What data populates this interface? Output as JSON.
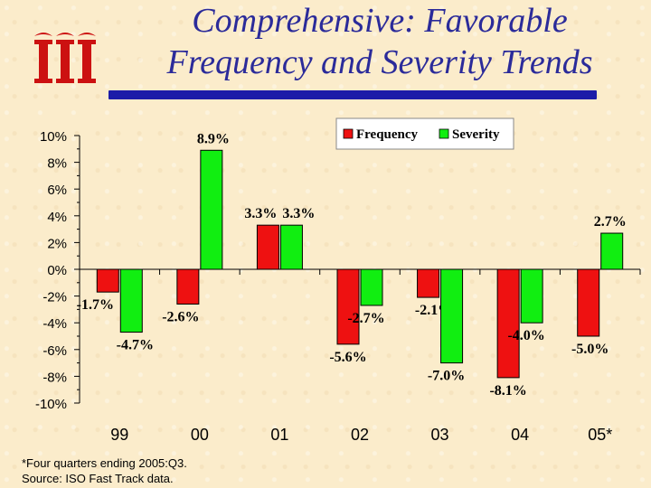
{
  "title": "Comprehensive: Favorable Frequency and Severity Trends",
  "title_lines": [
    "Comprehensive: Favorable",
    "Frequency and Severity Trends"
  ],
  "footnote": {
    "line1": "*Four quarters ending 2005:Q3.",
    "line2": "Source: ISO Fast Track data."
  },
  "logo": {
    "name": "iii-logo-icon",
    "color": "#cc1111"
  },
  "colors": {
    "frequency": "#ee1111",
    "severity": "#11ee11",
    "title": "#2b2b9a",
    "rule": "#1c1ca8"
  },
  "chart_data": {
    "type": "bar",
    "categories": [
      "99",
      "00",
      "01",
      "02",
      "03",
      "04",
      "05*"
    ],
    "series": [
      {
        "name": "Frequency",
        "values": [
          -1.7,
          -2.6,
          3.3,
          -5.6,
          -2.1,
          -8.1,
          -5.0
        ],
        "labels": [
          "-1.7%",
          "-2.6%",
          "3.3%",
          "-5.6%",
          "-2.1%",
          "-8.1%",
          "-5.0%"
        ]
      },
      {
        "name": "Severity",
        "values": [
          -4.7,
          8.9,
          3.3,
          -2.7,
          -7.0,
          -4.0,
          2.7
        ],
        "labels": [
          "-4.7%",
          "8.9%",
          "3.3%",
          "-2.7%",
          "-7.0%",
          "-4.0%",
          "2.7%"
        ]
      }
    ],
    "ylim": [
      -10,
      10
    ],
    "yticks": [
      "10%",
      "8%",
      "6%",
      "4%",
      "2%",
      "0%",
      "-2%",
      "-4%",
      "-6%",
      "-8%",
      "-10%"
    ],
    "ytick_values": [
      10,
      8,
      6,
      4,
      2,
      0,
      -2,
      -4,
      -6,
      -8,
      -10
    ],
    "legend": "top-right",
    "grid": false
  }
}
